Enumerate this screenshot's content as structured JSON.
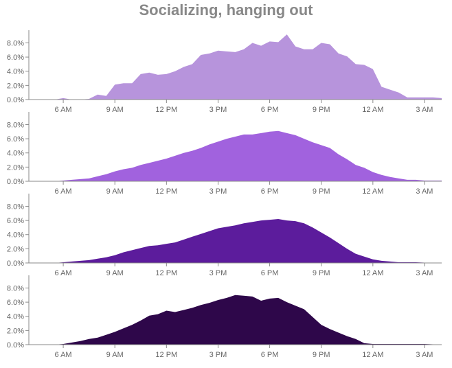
{
  "title": "Socializing, hanging out",
  "chart_data": [
    {
      "type": "area",
      "color": "#b794dc",
      "x": [
        4.0,
        4.5,
        5.0,
        5.5,
        6.0,
        6.5,
        7.0,
        7.5,
        8.0,
        8.5,
        9.0,
        9.5,
        10.0,
        10.5,
        11.0,
        11.5,
        12.0,
        12.5,
        13.0,
        13.5,
        14.0,
        14.5,
        15.0,
        15.5,
        16.0,
        16.5,
        17.0,
        17.5,
        18.0,
        18.5,
        19.0,
        19.5,
        20.0,
        20.5,
        21.0,
        21.5,
        22.0,
        22.5,
        23.0,
        23.5,
        24.0,
        24.5,
        25.0,
        25.5,
        26.0,
        26.5,
        27.0,
        27.5,
        28.0
      ],
      "values": [
        0,
        0,
        0,
        0,
        0.2,
        0,
        0,
        0.1,
        0.7,
        0.5,
        2.1,
        2.3,
        2.3,
        3.6,
        3.8,
        3.5,
        3.6,
        4.0,
        4.6,
        5.0,
        6.3,
        6.5,
        6.9,
        6.8,
        6.7,
        7.1,
        8.0,
        7.6,
        8.2,
        8.1,
        9.2,
        7.5,
        7.1,
        7.1,
        8.0,
        7.8,
        6.5,
        6.1,
        5.0,
        4.9,
        4.3,
        1.8,
        1.4,
        1.0,
        0.3,
        0.3,
        0.3,
        0.3,
        0.2
      ],
      "ylim": [
        0,
        9.5
      ],
      "yticks": [
        "0.0%",
        "2.0%",
        "4.0%",
        "6.0%",
        "8.0%"
      ]
    },
    {
      "type": "area",
      "color": "#a162de",
      "x": [
        4.0,
        4.5,
        5.0,
        5.5,
        6.0,
        6.5,
        7.0,
        7.5,
        8.0,
        8.5,
        9.0,
        9.5,
        10.0,
        10.5,
        11.0,
        11.5,
        12.0,
        12.5,
        13.0,
        13.5,
        14.0,
        14.5,
        15.0,
        15.5,
        16.0,
        16.5,
        17.0,
        17.5,
        18.0,
        18.5,
        19.0,
        19.5,
        20.0,
        20.5,
        21.0,
        21.5,
        22.0,
        22.5,
        23.0,
        23.5,
        24.0,
        24.5,
        25.0,
        25.5,
        26.0,
        26.5,
        27.0,
        27.5,
        28.0
      ],
      "values": [
        0,
        0,
        0,
        0,
        0.1,
        0.2,
        0.3,
        0.4,
        0.7,
        1.0,
        1.4,
        1.7,
        1.9,
        2.3,
        2.6,
        2.9,
        3.2,
        3.6,
        4.0,
        4.3,
        4.7,
        5.2,
        5.6,
        6.0,
        6.3,
        6.6,
        6.6,
        6.8,
        7.0,
        7.1,
        6.8,
        6.5,
        6.0,
        5.5,
        5.1,
        4.7,
        3.8,
        3.1,
        2.3,
        1.9,
        1.3,
        0.9,
        0.6,
        0.4,
        0.2,
        0.2,
        0.1,
        0.1,
        0.1
      ],
      "ylim": [
        0,
        9.5
      ],
      "yticks": [
        "0.0%",
        "2.0%",
        "4.0%",
        "6.0%",
        "8.0%"
      ]
    },
    {
      "type": "area",
      "color": "#5c1c9c",
      "x": [
        4.0,
        4.5,
        5.0,
        5.5,
        6.0,
        6.5,
        7.0,
        7.5,
        8.0,
        8.5,
        9.0,
        9.5,
        10.0,
        10.5,
        11.0,
        11.5,
        12.0,
        12.5,
        13.0,
        13.5,
        14.0,
        14.5,
        15.0,
        15.5,
        16.0,
        16.5,
        17.0,
        17.5,
        18.0,
        18.5,
        19.0,
        19.5,
        20.0,
        20.5,
        21.0,
        21.5,
        22.0,
        22.5,
        23.0,
        23.5,
        24.0,
        24.5,
        25.0,
        25.5,
        26.0,
        26.5,
        27.0,
        27.5,
        28.0
      ],
      "values": [
        0,
        0,
        0,
        0,
        0.1,
        0.2,
        0.3,
        0.4,
        0.6,
        0.8,
        1.1,
        1.5,
        1.8,
        2.1,
        2.4,
        2.5,
        2.7,
        2.9,
        3.3,
        3.7,
        4.1,
        4.5,
        4.9,
        5.1,
        5.3,
        5.6,
        5.8,
        6.0,
        6.1,
        6.2,
        6.0,
        5.9,
        5.6,
        5.0,
        4.3,
        3.6,
        2.8,
        2.0,
        1.3,
        0.9,
        0.5,
        0.3,
        0.2,
        0.1,
        0.1,
        0.1,
        0.05,
        0,
        0
      ],
      "ylim": [
        0,
        9.5
      ],
      "yticks": [
        "0.0%",
        "2.0%",
        "4.0%",
        "6.0%",
        "8.0%"
      ]
    },
    {
      "type": "area",
      "color": "#2e074a",
      "x": [
        4.0,
        4.5,
        5.0,
        5.5,
        6.0,
        6.5,
        7.0,
        7.5,
        8.0,
        8.5,
        9.0,
        9.5,
        10.0,
        10.5,
        11.0,
        11.5,
        12.0,
        12.5,
        13.0,
        13.5,
        14.0,
        14.5,
        15.0,
        15.5,
        16.0,
        16.5,
        17.0,
        17.5,
        18.0,
        18.5,
        19.0,
        19.5,
        20.0,
        20.5,
        21.0,
        21.5,
        22.0,
        22.5,
        23.0,
        23.5,
        24.0,
        24.5,
        25.0,
        25.5,
        26.0,
        26.5,
        27.0,
        27.5,
        28.0
      ],
      "values": [
        0,
        0,
        0,
        0,
        0.1,
        0.3,
        0.5,
        0.8,
        1.0,
        1.4,
        1.8,
        2.3,
        2.8,
        3.4,
        4.1,
        4.3,
        4.8,
        4.6,
        4.9,
        5.2,
        5.6,
        5.9,
        6.3,
        6.6,
        7.0,
        6.9,
        6.8,
        6.2,
        6.5,
        6.6,
        6.0,
        5.5,
        5.0,
        3.9,
        2.8,
        2.2,
        1.7,
        1.2,
        0.8,
        0.2,
        0.1,
        0.1,
        0.1,
        0.1,
        0.1,
        0.1,
        0.1,
        0.05,
        0
      ],
      "ylim": [
        0,
        9.5
      ],
      "yticks": [
        "0.0%",
        "2.0%",
        "4.0%",
        "6.0%",
        "8.0%"
      ]
    }
  ],
  "x_axis": {
    "xlim": [
      4.0,
      28.0
    ],
    "ticks": [
      {
        "value": 6,
        "label": "6 AM"
      },
      {
        "value": 9,
        "label": "9 AM"
      },
      {
        "value": 12,
        "label": "12 PM"
      },
      {
        "value": 15,
        "label": "3 PM"
      },
      {
        "value": 18,
        "label": "6 PM"
      },
      {
        "value": 21,
        "label": "9 PM"
      },
      {
        "value": 24,
        "label": "12 AM"
      },
      {
        "value": 27,
        "label": "3 AM"
      }
    ]
  },
  "axis_color": "#888888",
  "label_color": "#666666"
}
